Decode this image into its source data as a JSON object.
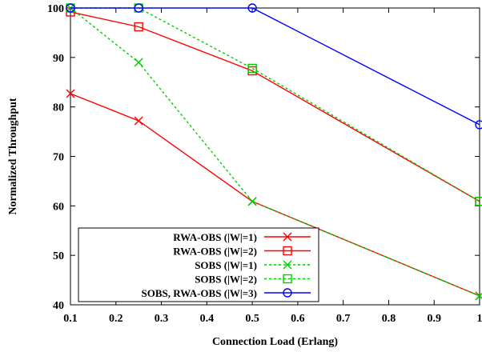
{
  "chart_data": {
    "type": "line",
    "xlabel": "Connection Load (Erlang)",
    "ylabel": "Normalized Throughput",
    "xlim": [
      0.1,
      1.0
    ],
    "ylim": [
      40,
      100
    ],
    "x_ticks": [
      0.1,
      0.2,
      0.3,
      0.4,
      0.5,
      0.6,
      0.7,
      0.8,
      0.9,
      1.0
    ],
    "x_tick_labels": [
      "0.1",
      "0.2",
      "0.3",
      "0.4",
      "0.5",
      "0.6",
      "0.7",
      "0.8",
      "0.9",
      "1"
    ],
    "y_ticks": [
      40,
      50,
      60,
      70,
      80,
      90,
      100
    ],
    "y_tick_labels": [
      "40",
      "50",
      "60",
      "70",
      "80",
      "90",
      "100"
    ],
    "grid": false,
    "legend_position": "bottom-left",
    "series": [
      {
        "name": "RWA-OBS (|W|=1)",
        "color": "#ff0000",
        "dash": "solid",
        "marker": "x",
        "x": [
          0.1,
          0.25,
          0.5,
          1.0
        ],
        "y": [
          82.7,
          77.2,
          60.9,
          41.8
        ]
      },
      {
        "name": "RWA-OBS (|W|=2)",
        "color": "#ff0000",
        "dash": "solid",
        "marker": "square",
        "x": [
          0.1,
          0.25,
          0.5,
          1.0
        ],
        "y": [
          99.2,
          96.2,
          87.3,
          60.9
        ]
      },
      {
        "name": "SOBS (|W|=1)",
        "color": "#00cc00",
        "dash": "dashed",
        "marker": "x",
        "x": [
          0.1,
          0.25,
          0.5,
          1.0
        ],
        "y": [
          100,
          89.0,
          60.9,
          41.8
        ]
      },
      {
        "name": "SOBS (|W|=2)",
        "color": "#00cc00",
        "dash": "dashed",
        "marker": "square",
        "x": [
          0.1,
          0.25,
          0.5,
          1.0
        ],
        "y": [
          100,
          100,
          87.8,
          60.9
        ]
      },
      {
        "name": "SOBS, RWA-OBS (|W|=3)",
        "color": "#0000ff",
        "dash": "solid",
        "marker": "circle",
        "x": [
          0.1,
          0.25,
          0.5,
          1.0
        ],
        "y": [
          100,
          100,
          100,
          76.4
        ]
      }
    ]
  }
}
